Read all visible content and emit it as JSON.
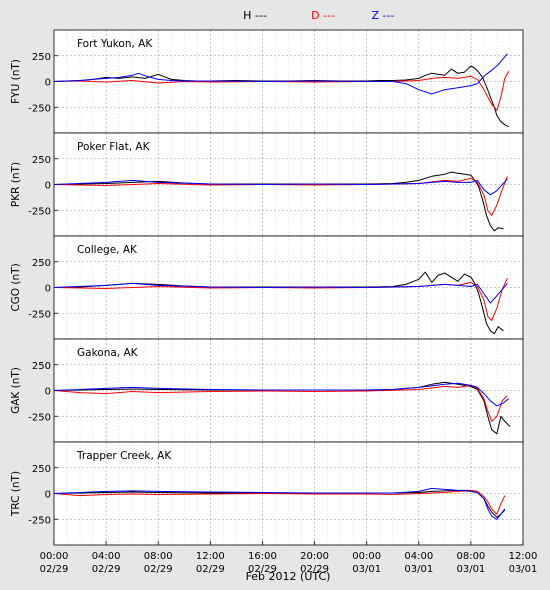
{
  "legend": [
    {
      "label": "H ---",
      "color": "#000000"
    },
    {
      "label": "D ---",
      "color": "#ff0000"
    },
    {
      "label": "Z ---",
      "color": "#0000ff"
    }
  ],
  "colors": {
    "H": "#000000",
    "D": "#ff0000",
    "Z": "#0000ff",
    "page_bg": "#e6e6e6",
    "panel_bg": "#ffffff",
    "grid": "#999999"
  },
  "chart_data": {
    "type": "line",
    "xlabel": "Feb 2012 (UTC)",
    "x_unit": "hours since 00:00 02/29",
    "xlim": [
      0,
      36
    ],
    "x_ticks": [
      {
        "x": 0,
        "time": "00:00",
        "date": "02/29"
      },
      {
        "x": 4,
        "time": "04:00",
        "date": "02/29"
      },
      {
        "x": 8,
        "time": "08:00",
        "date": "02/29"
      },
      {
        "x": 12,
        "time": "12:00",
        "date": "02/29"
      },
      {
        "x": 16,
        "time": "16:00",
        "date": "02/29"
      },
      {
        "x": 20,
        "time": "20:00",
        "date": "02/29"
      },
      {
        "x": 24,
        "time": "00:00",
        "date": "03/01"
      },
      {
        "x": 28,
        "time": "04:00",
        "date": "03/01"
      },
      {
        "x": 32,
        "time": "08:00",
        "date": "03/01"
      },
      {
        "x": 36,
        "time": "12:00",
        "date": "03/01"
      }
    ],
    "ylim": [
      -500,
      500
    ],
    "y_ticks": [
      250,
      0,
      -250
    ],
    "panels": [
      {
        "station": "Fort Yukon, AK",
        "ylabel": "FYU (nT)",
        "series": [
          {
            "name": "H",
            "x": [
              0,
              1,
              2,
              3,
              4,
              5,
              6,
              7,
              8,
              9,
              10,
              11,
              12,
              14,
              16,
              18,
              20,
              22,
              24,
              25,
              26,
              27,
              28,
              28.5,
              29,
              29.5,
              30,
              30.5,
              31,
              31.5,
              32,
              32.3,
              32.6,
              32.9,
              33.2,
              33.5,
              33.8,
              34,
              34.3,
              34.6,
              34.9
            ],
            "y": [
              0,
              5,
              10,
              20,
              40,
              30,
              45,
              30,
              70,
              20,
              10,
              5,
              5,
              10,
              5,
              5,
              10,
              5,
              5,
              10,
              10,
              15,
              30,
              60,
              80,
              70,
              60,
              120,
              80,
              90,
              150,
              130,
              90,
              40,
              -50,
              -150,
              -250,
              -330,
              -390,
              -420,
              -440
            ]
          },
          {
            "name": "D",
            "x": [
              0,
              2,
              4,
              6,
              8,
              10,
              12,
              16,
              20,
              24,
              26,
              28,
              29,
              30,
              31,
              32,
              32.5,
              33,
              33.3,
              33.6,
              34,
              34.3,
              34.6,
              34.9
            ],
            "y": [
              0,
              5,
              -5,
              10,
              -15,
              0,
              -5,
              0,
              -5,
              0,
              0,
              10,
              30,
              40,
              30,
              50,
              20,
              -80,
              -150,
              -220,
              -280,
              -150,
              30,
              100
            ]
          },
          {
            "name": "Z",
            "x": [
              0,
              1,
              2,
              3,
              4,
              5,
              6,
              6.5,
              7,
              8,
              9,
              10,
              12,
              16,
              20,
              24,
              26,
              27,
              28,
              29,
              30,
              31,
              32,
              32.5,
              33,
              33.5,
              34,
              34.4,
              34.8
            ],
            "y": [
              0,
              5,
              10,
              20,
              30,
              40,
              60,
              80,
              55,
              20,
              10,
              5,
              5,
              0,
              5,
              0,
              0,
              -20,
              -80,
              -120,
              -80,
              -60,
              -40,
              -20,
              50,
              100,
              150,
              210,
              270
            ]
          }
        ]
      },
      {
        "station": "Poker Flat, AK",
        "ylabel": "PKR (nT)",
        "series": [
          {
            "name": "H",
            "x": [
              0,
              2,
              4,
              6,
              8,
              10,
              12,
              16,
              20,
              24,
              26,
              27,
              28,
              29,
              30,
              30.5,
              31,
              31.5,
              32,
              32.3,
              32.6,
              32.9,
              33.2,
              33.5,
              33.8,
              34.1,
              34.5
            ],
            "y": [
              0,
              5,
              10,
              20,
              30,
              15,
              5,
              5,
              5,
              5,
              10,
              20,
              40,
              80,
              100,
              120,
              110,
              100,
              90,
              40,
              -20,
              -150,
              -300,
              -400,
              -450,
              -420,
              -430
            ]
          },
          {
            "name": "D",
            "x": [
              0,
              4,
              8,
              12,
              16,
              20,
              24,
              28,
              30,
              31,
              32,
              32.5,
              33,
              33.3,
              33.6,
              34,
              34.4,
              34.8
            ],
            "y": [
              0,
              -10,
              10,
              -5,
              0,
              -5,
              0,
              10,
              40,
              30,
              60,
              20,
              -100,
              -250,
              -300,
              -200,
              -50,
              80
            ]
          },
          {
            "name": "Z",
            "x": [
              0,
              4,
              6,
              8,
              12,
              16,
              20,
              24,
              28,
              30,
              31,
              32,
              32.5,
              33,
              33.5,
              34,
              34.4,
              34.8
            ],
            "y": [
              0,
              20,
              40,
              20,
              5,
              0,
              5,
              0,
              10,
              30,
              20,
              20,
              40,
              -50,
              -100,
              -60,
              0,
              50
            ]
          }
        ]
      },
      {
        "station": "College, AK",
        "ylabel": "CGO (nT)",
        "series": [
          {
            "name": "H",
            "x": [
              0,
              2,
              4,
              6,
              8,
              10,
              12,
              16,
              20,
              24,
              26,
              27,
              28,
              28.5,
              29,
              29.5,
              30,
              30.5,
              31,
              31.5,
              32,
              32.3,
              32.6,
              32.9,
              33.2,
              33.5,
              33.8,
              34.1,
              34.5
            ],
            "y": [
              0,
              5,
              20,
              40,
              30,
              15,
              5,
              5,
              5,
              5,
              10,
              30,
              80,
              150,
              50,
              120,
              140,
              100,
              60,
              130,
              100,
              40,
              -60,
              -200,
              -350,
              -420,
              -450,
              -380,
              -420
            ]
          },
          {
            "name": "D",
            "x": [
              0,
              4,
              8,
              12,
              16,
              20,
              24,
              28,
              30,
              31,
              32,
              32.5,
              33,
              33.3,
              33.6,
              34,
              34.4,
              34.8
            ],
            "y": [
              0,
              -10,
              10,
              -5,
              0,
              -5,
              0,
              10,
              30,
              20,
              50,
              10,
              -120,
              -280,
              -320,
              -200,
              -20,
              90
            ]
          },
          {
            "name": "Z",
            "x": [
              0,
              4,
              6,
              8,
              12,
              16,
              20,
              24,
              28,
              30,
              31,
              32,
              32.5,
              33,
              33.5,
              34,
              34.4,
              34.8
            ],
            "y": [
              0,
              20,
              40,
              20,
              5,
              0,
              5,
              0,
              10,
              30,
              20,
              10,
              30,
              -60,
              -150,
              -80,
              -20,
              40
            ]
          }
        ]
      },
      {
        "station": "Gakona, AK",
        "ylabel": "GAK (nT)",
        "series": [
          {
            "name": "H",
            "x": [
              0,
              2,
              4,
              6,
              8,
              12,
              16,
              20,
              24,
              26,
              28,
              29,
              30,
              31,
              32,
              32.5,
              33,
              33.3,
              33.6,
              34,
              34.3,
              34.6,
              35
            ],
            "y": [
              0,
              5,
              10,
              15,
              10,
              5,
              5,
              5,
              5,
              10,
              30,
              60,
              80,
              60,
              40,
              10,
              -100,
              -250,
              -380,
              -420,
              -250,
              -300,
              -350
            ]
          },
          {
            "name": "D",
            "x": [
              0,
              2,
              4,
              6,
              8,
              12,
              16,
              20,
              24,
              28,
              30,
              31,
              32,
              32.5,
              33,
              33.3,
              33.6,
              34,
              34.4,
              34.8
            ],
            "y": [
              0,
              -20,
              -30,
              -10,
              -20,
              -10,
              -5,
              -10,
              -5,
              10,
              40,
              30,
              50,
              20,
              -80,
              -200,
              -300,
              -250,
              -100,
              -50
            ]
          },
          {
            "name": "Z",
            "x": [
              0,
              2,
              4,
              6,
              8,
              12,
              16,
              20,
              24,
              26,
              28,
              30,
              31,
              32,
              32.5,
              33,
              33.5,
              34,
              34.5,
              34.9
            ],
            "y": [
              0,
              10,
              20,
              30,
              20,
              10,
              5,
              5,
              5,
              10,
              30,
              60,
              70,
              50,
              30,
              -30,
              -100,
              -150,
              -120,
              -80
            ]
          }
        ]
      },
      {
        "station": "Trapper Creek, AK",
        "ylabel": "TRC (nT)",
        "series": [
          {
            "name": "H",
            "x": [
              0,
              2,
              4,
              6,
              8,
              12,
              16,
              20,
              24,
              26,
              28,
              29,
              30,
              31,
              32,
              32.5,
              33,
              33.3,
              33.6,
              34,
              34.3,
              34.6
            ],
            "y": [
              0,
              5,
              10,
              15,
              10,
              5,
              5,
              5,
              5,
              5,
              10,
              20,
              25,
              30,
              30,
              10,
              -50,
              -120,
              -180,
              -230,
              -200,
              -160
            ]
          },
          {
            "name": "D",
            "x": [
              0,
              2,
              4,
              6,
              8,
              12,
              16,
              20,
              24,
              26,
              28,
              30,
              31,
              32,
              32.5,
              33,
              33.3,
              33.6,
              34,
              34.3,
              34.6
            ],
            "y": [
              0,
              -20,
              -10,
              -5,
              -10,
              -5,
              0,
              -5,
              -5,
              -10,
              0,
              10,
              20,
              30,
              20,
              -30,
              -80,
              -150,
              -200,
              -100,
              -20
            ]
          },
          {
            "name": "Z",
            "x": [
              0,
              2,
              4,
              6,
              8,
              12,
              16,
              20,
              24,
              26,
              28,
              29,
              30,
              31,
              32,
              32.5,
              33,
              33.3,
              33.6,
              34,
              34.3,
              34.6
            ],
            "y": [
              0,
              10,
              20,
              25,
              20,
              15,
              10,
              5,
              5,
              5,
              20,
              50,
              40,
              30,
              20,
              10,
              -50,
              -150,
              -220,
              -250,
              -200,
              -150
            ]
          }
        ]
      }
    ]
  }
}
